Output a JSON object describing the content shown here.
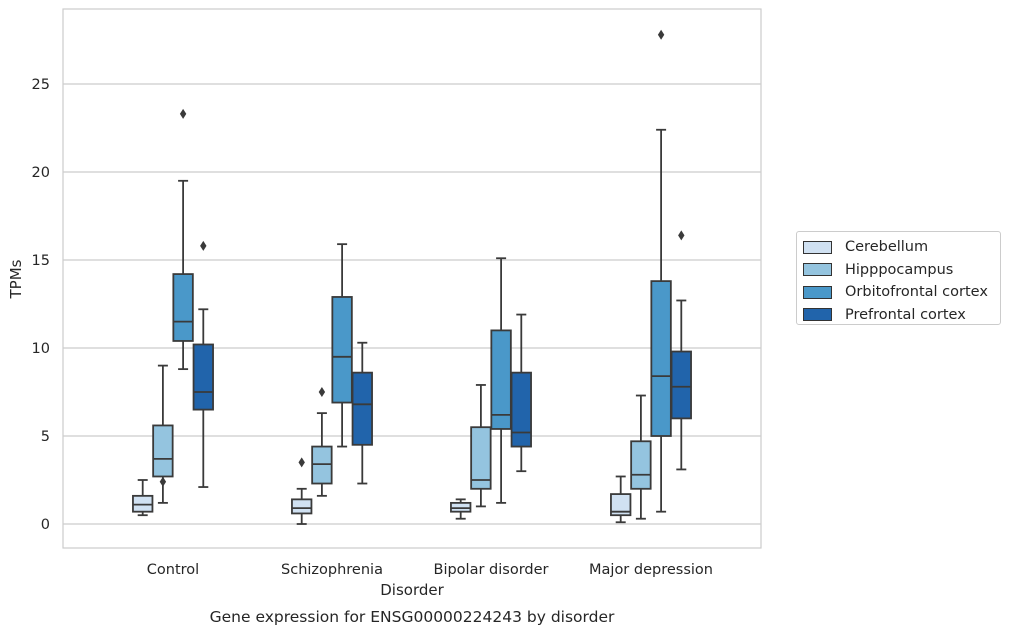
{
  "chart_data": {
    "type": "box",
    "title": "",
    "caption": "Gene expression for ENSG00000224243 by disorder",
    "xlabel": "Disorder",
    "ylabel": "TPMs",
    "ylim": [
      -1.3,
      29.5
    ],
    "yticks": [
      0,
      5,
      10,
      15,
      20,
      25
    ],
    "grid": "horizontal",
    "legend_placement": "right",
    "categories": [
      "Control",
      "Schizophrenia",
      "Bipolar disorder",
      "Major depression"
    ],
    "series": [
      {
        "name": "Cerebellum",
        "color": "#d0e1f2",
        "boxes": [
          {
            "min": 0.5,
            "q1": 0.7,
            "median": 1.1,
            "q3": 1.6,
            "max": 2.5,
            "outliers": []
          },
          {
            "min": 0.0,
            "q1": 0.6,
            "median": 0.9,
            "q3": 1.4,
            "max": 2.0,
            "outliers": [
              3.5
            ]
          },
          {
            "min": 0.3,
            "q1": 0.7,
            "median": 0.9,
            "q3": 1.2,
            "max": 1.4,
            "outliers": []
          },
          {
            "min": 0.1,
            "q1": 0.5,
            "median": 0.7,
            "q3": 1.7,
            "max": 2.7,
            "outliers": []
          }
        ]
      },
      {
        "name": "Hipppocampus",
        "color": "#94c4df",
        "boxes": [
          {
            "min": 1.2,
            "q1": 2.7,
            "median": 3.7,
            "q3": 5.6,
            "max": 9.0,
            "outliers": [
              2.4
            ]
          },
          {
            "min": 1.6,
            "q1": 2.3,
            "median": 3.4,
            "q3": 4.4,
            "max": 6.3,
            "outliers": [
              7.5
            ]
          },
          {
            "min": 1.0,
            "q1": 2.0,
            "median": 2.5,
            "q3": 5.5,
            "max": 7.9,
            "outliers": []
          },
          {
            "min": 0.3,
            "q1": 2.0,
            "median": 2.8,
            "q3": 4.7,
            "max": 7.3,
            "outliers": []
          }
        ]
      },
      {
        "name": "Orbitofrontal cortex",
        "color": "#4a98c9",
        "boxes": [
          {
            "min": 8.8,
            "q1": 10.4,
            "median": 11.5,
            "q3": 14.2,
            "max": 19.5,
            "outliers": [
              23.3
            ]
          },
          {
            "min": 4.4,
            "q1": 6.9,
            "median": 9.5,
            "q3": 12.9,
            "max": 15.9,
            "outliers": []
          },
          {
            "min": 1.2,
            "q1": 5.4,
            "median": 6.2,
            "q3": 11.0,
            "max": 15.1,
            "outliers": []
          },
          {
            "min": 0.7,
            "q1": 5.0,
            "median": 8.4,
            "q3": 13.8,
            "max": 22.4,
            "outliers": [
              27.8
            ]
          }
        ]
      },
      {
        "name": "Prefrontal cortex",
        "color": "#2164ab",
        "boxes": [
          {
            "min": 2.1,
            "q1": 6.5,
            "median": 7.5,
            "q3": 10.2,
            "max": 12.2,
            "outliers": [
              15.8
            ]
          },
          {
            "min": 2.3,
            "q1": 4.5,
            "median": 6.8,
            "q3": 8.6,
            "max": 10.3,
            "outliers": []
          },
          {
            "min": 3.0,
            "q1": 4.4,
            "median": 5.2,
            "q3": 8.6,
            "max": 11.9,
            "outliers": []
          },
          {
            "min": 3.1,
            "q1": 6.0,
            "median": 7.8,
            "q3": 9.8,
            "max": 12.7,
            "outliers": [
              16.4
            ]
          }
        ]
      }
    ]
  }
}
